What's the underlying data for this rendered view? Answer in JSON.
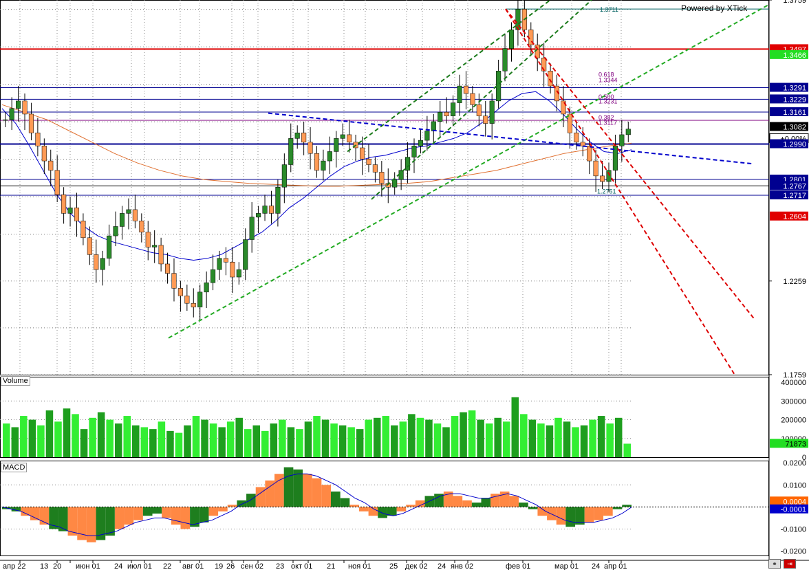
{
  "watermark": "Powered by XTick",
  "panels": {
    "volume_label": "Volume",
    "macd_label": "MACD"
  },
  "colors": {
    "bull": "#2a8a2a",
    "bear": "#ff9a55",
    "resistance": "#dd0000",
    "support": "#000090",
    "fib": "#800080",
    "trend_green": "#22aa22",
    "trend_green_dark": "#1a7a1a",
    "trend_red": "#dd0000",
    "trend_blue": "#0000cc",
    "ma_short": "#0000cc",
    "ma_long": "#e07030",
    "vol_light": "#33ee33",
    "vol_dark": "#1e9e1e",
    "macd_up": "#1e7e1e",
    "macd_down": "#ff8844",
    "macd_signal": "#0000cc"
  },
  "chart_data": [
    {
      "type": "candlestick",
      "price_axis_ticks": [
        "1.3759",
        "1.2259",
        "1.1759"
      ],
      "ylim": [
        1.1759,
        1.3759
      ],
      "price_tags": [
        {
          "label": "1.3497",
          "bg": "#e00000",
          "fg": "#ffffff"
        },
        {
          "label": "1.3466",
          "bg": "#22dd22",
          "fg": "#ffffff"
        },
        {
          "label": "1.3291",
          "bg": "#000090",
          "fg": "#ffffff"
        },
        {
          "label": "1.3229",
          "bg": "#000090",
          "fg": "#ffffff"
        },
        {
          "label": "1.3161",
          "bg": "#000090",
          "fg": "#ffffff"
        },
        {
          "label": "1.3082",
          "bg": "#000000",
          "fg": "#ffffff"
        },
        {
          "label": "+0.00%",
          "bg": "#ffffff",
          "fg": "#000000"
        },
        {
          "label": "1.2990",
          "bg": "#000090",
          "fg": "#ffffff"
        },
        {
          "label": "1.2801",
          "bg": "#000090",
          "fg": "#ffffff"
        },
        {
          "label": "1.2767",
          "bg": "#000090",
          "fg": "#ffffff"
        },
        {
          "label": "1.2717",
          "bg": "#000090",
          "fg": "#ffffff"
        },
        {
          "label": "1.2604",
          "bg": "#e00000",
          "fg": "#ffffff"
        }
      ],
      "fib_labels": [
        "1.3711",
        "0.618",
        "1.3344",
        "0.500",
        "1.3231",
        "0.382",
        "1.3117",
        "1.2751"
      ],
      "x_labels": [
        "апр 22",
        "13",
        "20",
        "июн 01",
        "24",
        "июл 01",
        "22",
        "авг 01",
        "19",
        "26",
        "сен 02",
        "23",
        "окт 01",
        "21",
        "ноя 01",
        "25",
        "дек 02",
        "24",
        "янв 02",
        "фев 01",
        "мар 01",
        "24",
        "апр 01"
      ],
      "close_path": [
        1.312,
        1.318,
        1.322,
        1.315,
        1.305,
        1.298,
        1.29,
        1.285,
        1.272,
        1.262,
        1.265,
        1.258,
        1.249,
        1.24,
        1.232,
        1.238,
        1.25,
        1.255,
        1.262,
        1.264,
        1.258,
        1.252,
        1.244,
        1.245,
        1.235,
        1.23,
        1.222,
        1.218,
        1.214,
        1.212,
        1.22,
        1.225,
        1.232,
        1.238,
        1.236,
        1.228,
        1.232,
        1.248,
        1.26,
        1.262,
        1.266,
        1.262,
        1.276,
        1.288,
        1.302,
        1.305,
        1.3,
        1.294,
        1.285,
        1.29,
        1.295,
        1.302,
        1.304,
        1.3,
        1.297,
        1.291,
        1.288,
        1.284,
        1.278,
        1.276,
        1.28,
        1.285,
        1.292,
        1.298,
        1.301,
        1.306,
        1.311,
        1.316,
        1.314,
        1.321,
        1.33,
        1.326,
        1.32,
        1.314,
        1.31,
        1.322,
        1.338,
        1.35,
        1.36,
        1.371,
        1.36,
        1.352,
        1.345,
        1.338,
        1.33,
        1.322,
        1.315,
        1.305,
        1.3,
        1.298,
        1.29,
        1.282,
        1.279,
        1.285,
        1.298,
        1.304,
        1.307
      ],
      "ma_short": [
        1.318,
        1.31,
        1.298,
        1.285,
        1.272,
        1.262,
        1.255,
        1.25,
        1.247,
        1.245,
        1.243,
        1.241,
        1.24,
        1.238,
        1.237,
        1.238,
        1.24,
        1.244,
        1.248,
        1.252,
        1.258,
        1.265,
        1.27,
        1.276,
        1.282,
        1.287,
        1.29,
        1.292,
        1.293,
        1.295,
        1.297,
        1.298,
        1.3,
        1.302,
        1.305,
        1.31,
        1.316,
        1.322,
        1.326,
        1.327,
        1.322,
        1.315,
        1.307,
        1.3,
        1.295,
        1.294,
        1.296
      ],
      "ma_long": [
        1.32,
        1.316,
        1.312,
        1.306,
        1.3,
        1.294,
        1.289,
        1.285,
        1.282,
        1.28,
        1.279,
        1.278,
        1.2775,
        1.277,
        1.2765,
        1.2765,
        1.277,
        1.2775,
        1.278,
        1.279,
        1.281,
        1.283,
        1.285,
        1.288,
        1.291,
        1.294,
        1.296,
        1.298,
        1.2995
      ],
      "horizontal_levels": [
        {
          "value": 1.3711,
          "color": "#006060",
          "width": 1
        },
        {
          "value": 1.3497,
          "color": "#dd0000",
          "width": 2
        },
        {
          "value": 1.3291,
          "color": "#000090",
          "width": 1
        },
        {
          "value": 1.3229,
          "color": "#000090",
          "width": 1
        },
        {
          "value": 1.3161,
          "color": "#000090",
          "width": 1
        },
        {
          "value": 1.3117,
          "color": "#800080",
          "width": 1
        },
        {
          "value": 1.299,
          "color": "#000090",
          "width": 2
        },
        {
          "value": 1.2801,
          "color": "#000090",
          "width": 1
        },
        {
          "value": 1.2767,
          "color": "#000000",
          "width": 1
        },
        {
          "value": 1.2717,
          "color": "#000090",
          "width": 1
        }
      ]
    },
    {
      "type": "bar",
      "panel": "Volume",
      "y_ticks": [
        "400000",
        "300000",
        "200000",
        "100000",
        "0"
      ],
      "ylim": [
        0,
        400000
      ],
      "last_value_tag": "71873",
      "values": [
        180000,
        160000,
        220000,
        200000,
        170000,
        250000,
        190000,
        260000,
        230000,
        150000,
        210000,
        240000,
        200000,
        180000,
        220000,
        170000,
        160000,
        150000,
        190000,
        140000,
        130000,
        170000,
        220000,
        200000,
        180000,
        160000,
        190000,
        210000,
        150000,
        170000,
        140000,
        180000,
        200000,
        160000,
        150000,
        190000,
        220000,
        200000,
        180000,
        170000,
        160000,
        150000,
        200000,
        210000,
        220000,
        170000,
        190000,
        230000,
        210000,
        200000,
        180000,
        160000,
        220000,
        240000,
        250000,
        200000,
        180000,
        210000,
        190000,
        320000,
        230000,
        200000,
        180000,
        170000,
        210000,
        190000,
        160000,
        170000,
        200000,
        220000,
        180000,
        210000,
        72000
      ]
    },
    {
      "type": "bar",
      "panel": "MACD",
      "y_ticks": [
        "0.0200",
        "0.0100",
        "0.0000",
        "-0.0100",
        "-0.0200"
      ],
      "ylim": [
        -0.022,
        0.021
      ],
      "value_tags": [
        {
          "label": "0.0004",
          "bg": "#ff6600",
          "fg": "#ffffff"
        },
        {
          "label": "-0.0001",
          "bg": "#0000cc",
          "fg": "#ffffff"
        }
      ],
      "histogram": [
        -0.001,
        -0.002,
        -0.004,
        -0.006,
        -0.008,
        -0.01,
        -0.011,
        -0.013,
        -0.015,
        -0.016,
        -0.015,
        -0.013,
        -0.01,
        -0.008,
        -0.006,
        -0.004,
        -0.003,
        -0.005,
        -0.008,
        -0.01,
        -0.009,
        -0.007,
        -0.004,
        -0.002,
        0.001,
        0.003,
        0.006,
        0.009,
        0.012,
        0.015,
        0.018,
        0.017,
        0.015,
        0.013,
        0.01,
        0.007,
        0.004,
        0.001,
        -0.002,
        -0.004,
        -0.005,
        -0.004,
        -0.002,
        0.001,
        0.003,
        0.005,
        0.006,
        0.007,
        0.005,
        0.003,
        0.002,
        0.004,
        0.006,
        0.007,
        0.005,
        0.002,
        -0.001,
        -0.004,
        -0.006,
        -0.008,
        -0.009,
        -0.008,
        -0.007,
        -0.006,
        -0.004,
        -0.001,
        0.001
      ],
      "signal": [
        0,
        -0.001,
        -0.002,
        -0.004,
        -0.006,
        -0.008,
        -0.009,
        -0.011,
        -0.012,
        -0.013,
        -0.013,
        -0.012,
        -0.011,
        -0.009,
        -0.007,
        -0.006,
        -0.005,
        -0.005,
        -0.006,
        -0.007,
        -0.008,
        -0.007,
        -0.006,
        -0.004,
        -0.002,
        0.001,
        0.003,
        0.006,
        0.009,
        0.012,
        0.014,
        0.015,
        0.015,
        0.014,
        0.012,
        0.01,
        0.007,
        0.004,
        0.002,
        -0.001,
        -0.003,
        -0.004,
        -0.003,
        -0.001,
        0.001,
        0.003,
        0.005,
        0.006,
        0.006,
        0.005,
        0.004,
        0.004,
        0.005,
        0.006,
        0.005,
        0.003,
        0.001,
        -0.002,
        -0.004,
        -0.006,
        -0.007,
        -0.007,
        -0.007,
        -0.006,
        -0.005,
        -0.003,
        -0.0001
      ]
    }
  ]
}
